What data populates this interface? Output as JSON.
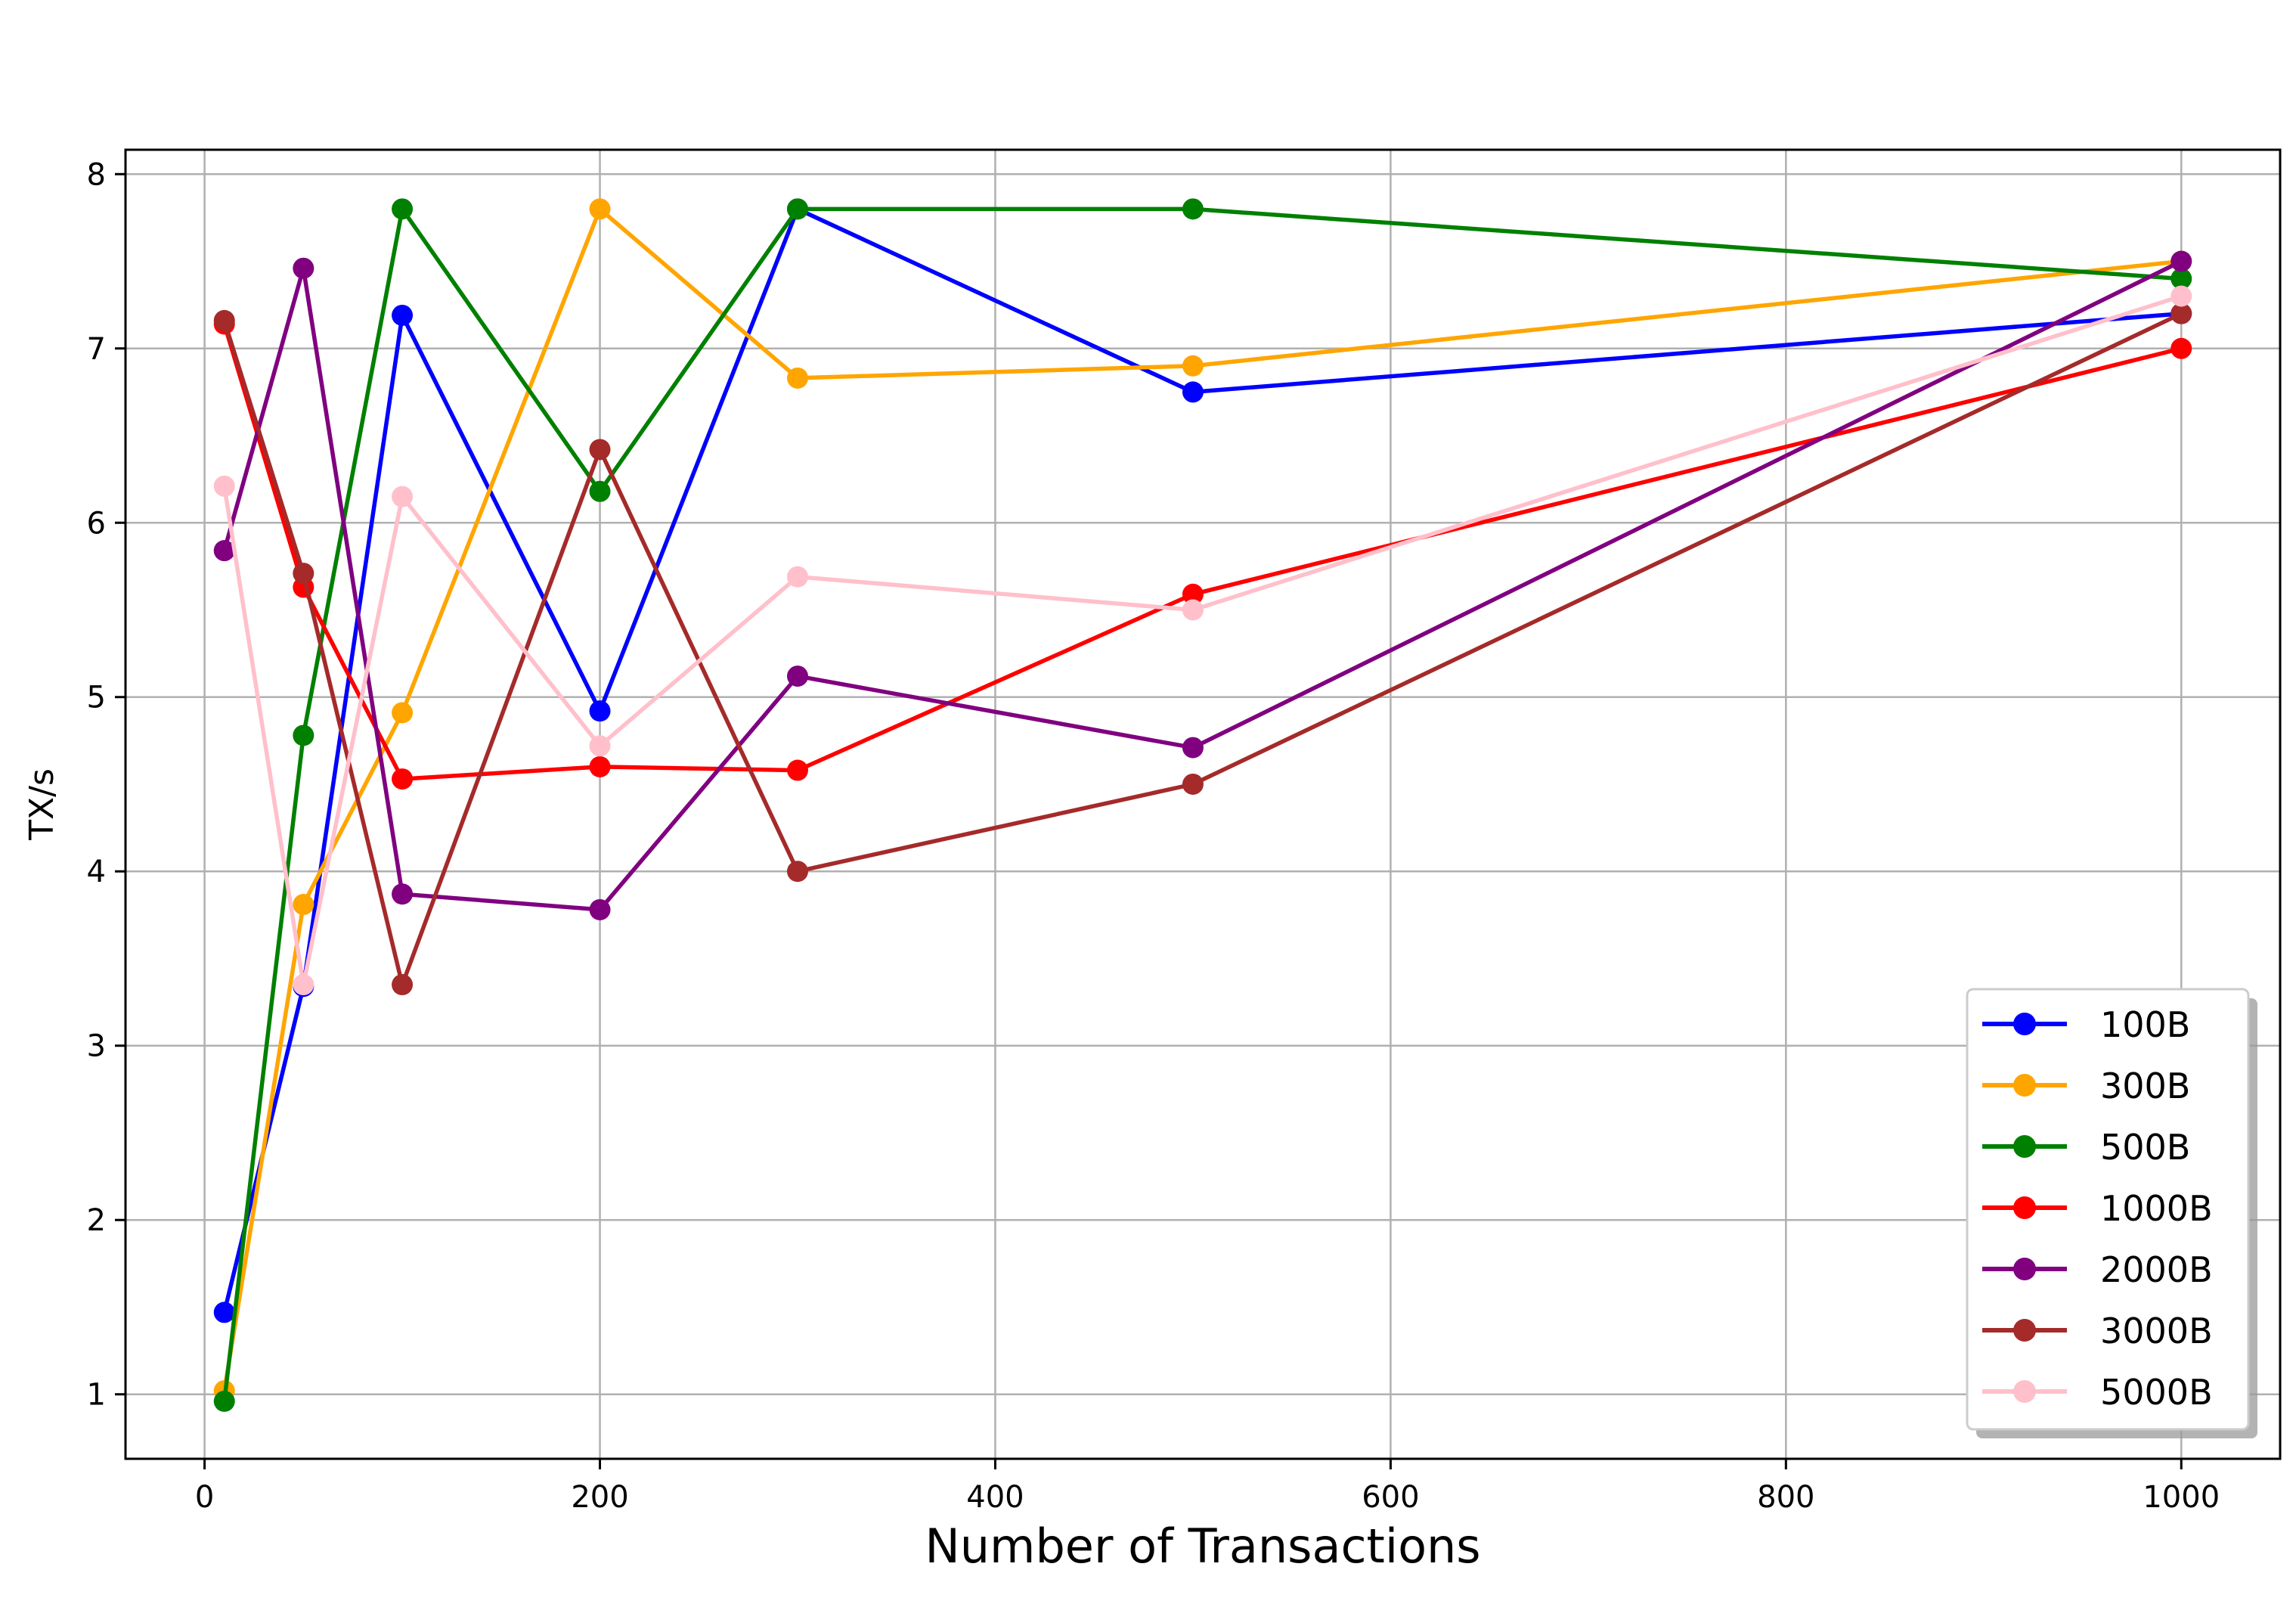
{
  "chart_data": {
    "type": "line",
    "title": "",
    "xlabel": "Number of Transactions",
    "ylabel": "TX/s",
    "xlim": [
      -40,
      1050
    ],
    "ylim": [
      0.63,
      8.14
    ],
    "xticks": [
      "0",
      "200",
      "400",
      "600",
      "800",
      "1000"
    ],
    "yticks": [
      "1",
      "2",
      "3",
      "4",
      "5",
      "6",
      "7",
      "8"
    ],
    "grid": true,
    "legend_position": "lower-right",
    "x": [
      10,
      50,
      100,
      200,
      300,
      500,
      1000
    ],
    "series": [
      {
        "name": "100B",
        "color": "#0000ff",
        "values": [
          1.47,
          3.34,
          7.19,
          4.92,
          7.8,
          6.75,
          7.2
        ]
      },
      {
        "name": "300B",
        "color": "#ffa500",
        "values": [
          1.02,
          3.81,
          4.91,
          7.8,
          6.83,
          6.9,
          7.5
        ]
      },
      {
        "name": "500B",
        "color": "#008000",
        "values": [
          0.96,
          4.78,
          7.8,
          6.18,
          7.8,
          7.8,
          7.4
        ]
      },
      {
        "name": "1000B",
        "color": "#ff0000",
        "values": [
          7.14,
          5.63,
          4.53,
          4.6,
          4.58,
          5.59,
          7.0
        ]
      },
      {
        "name": "2000B",
        "color": "#800080",
        "values": [
          5.84,
          7.46,
          3.87,
          3.78,
          5.12,
          4.71,
          7.5
        ]
      },
      {
        "name": "3000B",
        "color": "#a52a2a",
        "values": [
          7.16,
          5.71,
          3.35,
          6.42,
          4.0,
          4.5,
          7.2
        ]
      },
      {
        "name": "5000B",
        "color": "#ffc0cb",
        "values": [
          6.21,
          3.35,
          6.15,
          4.72,
          5.69,
          5.5,
          7.3
        ]
      }
    ]
  }
}
